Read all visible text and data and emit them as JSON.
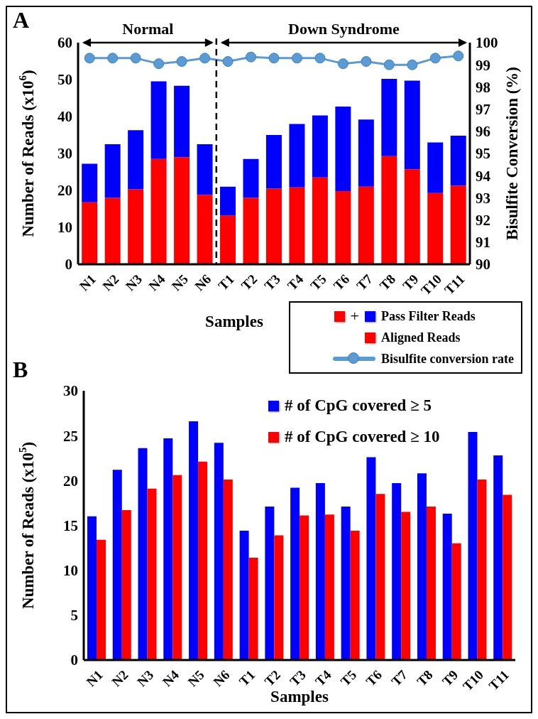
{
  "chart_data": [
    {
      "type": "bar",
      "title": "A",
      "xlabel": "Samples",
      "ylabel": "Number of Reads (x10$^{6}$)",
      "y2label": "Bisulfite Conversion (%)",
      "categories": [
        "N1",
        "N2",
        "N3",
        "N4",
        "N5",
        "N6",
        "T1",
        "T2",
        "T3",
        "T4",
        "T5",
        "T6",
        "T7",
        "T8",
        "T9",
        "T10",
        "T11"
      ],
      "stacked": true,
      "series": [
        {
          "name": "Aligned Reads",
          "color": "#ff0000",
          "values": [
            16.8,
            18,
            20.3,
            28.5,
            29,
            18.8,
            13.2,
            18,
            20.5,
            20.8,
            23.5,
            19.8,
            21,
            29.3,
            25.7,
            19.3,
            21.3
          ]
        },
        {
          "name": "Pass Filter Reads",
          "color": "#0000ff",
          "values": [
            10.4,
            14.5,
            16,
            21,
            19.3,
            13.7,
            7.8,
            10.5,
            14.5,
            17.2,
            16.8,
            22.9,
            18.2,
            20.9,
            24,
            13.7,
            13.5
          ]
        },
        {
          "name": "Bisulfite conversion rate",
          "type": "line",
          "axis": "y2",
          "color": "#5b9bd5",
          "values": [
            99.3,
            99.3,
            99.3,
            99.05,
            99.15,
            99.3,
            99.15,
            99.35,
            99.3,
            99.3,
            99.3,
            99.05,
            99.15,
            99.0,
            99.0,
            99.3,
            99.4
          ]
        }
      ],
      "ylim": [
        0,
        60
      ],
      "yticks": [
        0,
        10,
        20,
        30,
        40,
        50,
        60
      ],
      "y2lim": [
        90,
        100
      ],
      "y2ticks": [
        90,
        91,
        92,
        93,
        94,
        95,
        96,
        97,
        98,
        99,
        100
      ],
      "marker": "circle",
      "legend": "bottom right",
      "annotations": [
        "Normal",
        "Down Syndrome",
        "+"
      ],
      "ref_lines": [
        {
          "axis": "x",
          "value": "T1",
          "line_style": "dashed",
          "color": "#000000"
        }
      ]
    },
    {
      "type": "bar",
      "title": "B",
      "xlabel": "Samples",
      "ylabel": "Number of Reads (x10$^{5}$)",
      "categories": [
        "N1",
        "N2",
        "N3",
        "N4",
        "N5",
        "N6",
        "T1",
        "T2",
        "T3",
        "T4",
        "T5",
        "T6",
        "T7",
        "T8",
        "T9",
        "T10",
        "T11"
      ],
      "series": [
        {
          "name": "# of CpG covered ≥ 5",
          "color": "#0000ff",
          "values": [
            16,
            21.2,
            23.6,
            24.7,
            26.6,
            24.2,
            14.4,
            17.1,
            19.2,
            19.7,
            17.1,
            22.6,
            19.7,
            20.8,
            16.3,
            25.4,
            22.8
          ]
        },
        {
          "name": "# of CpG covered ≥ 10",
          "color": "#ff0000",
          "values": [
            13.4,
            16.7,
            19.1,
            20.6,
            22.1,
            20.1,
            11.4,
            13.9,
            16.1,
            16.2,
            14.4,
            18.5,
            16.5,
            17.1,
            13.0,
            20.1,
            18.4
          ]
        }
      ],
      "ylim": [
        0,
        30
      ],
      "yticks": [
        0,
        5,
        10,
        15,
        20,
        25,
        30
      ],
      "legend": "top right"
    }
  ]
}
